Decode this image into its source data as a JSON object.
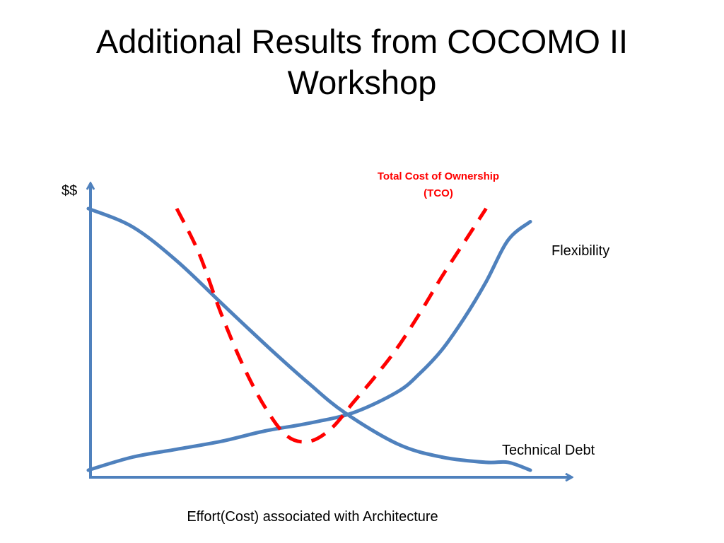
{
  "slide": {
    "title_line1": "Additional Results from COCOMO II",
    "title_line2": "Workshop"
  },
  "colors": {
    "axis": "#4f81bd",
    "curve": "#4f81bd",
    "tco": "#ff0000",
    "text": "#000000"
  },
  "chart_data": {
    "type": "line",
    "title": "",
    "xlabel": "Effort(Cost) associated with Architecture",
    "ylabel": "$$",
    "xlim": [
      0,
      1
    ],
    "ylim": [
      0,
      1
    ],
    "grid": false,
    "series": [
      {
        "name": "Technical Debt",
        "style": "solid",
        "x": [
          0.0,
          0.1,
          0.2,
          0.3,
          0.35,
          0.42,
          0.5,
          0.58,
          0.7,
          0.8,
          0.9,
          0.95,
          1.0
        ],
        "y": [
          1.0,
          0.93,
          0.8,
          0.64,
          0.56,
          0.45,
          0.33,
          0.22,
          0.1,
          0.05,
          0.03,
          0.03,
          0.0
        ]
      },
      {
        "name": "Flexibility",
        "style": "solid",
        "x": [
          0.0,
          0.1,
          0.2,
          0.3,
          0.4,
          0.5,
          0.6,
          0.7,
          0.75,
          0.8,
          0.85,
          0.9,
          0.95,
          1.0
        ],
        "y": [
          0.0,
          0.05,
          0.08,
          0.11,
          0.15,
          0.18,
          0.22,
          0.3,
          0.37,
          0.46,
          0.58,
          0.72,
          0.88,
          0.95
        ]
      },
      {
        "name": "Total Cost of Ownership (TCO)",
        "style": "dashed",
        "x": [
          0.2,
          0.25,
          0.3,
          0.35,
          0.4,
          0.45,
          0.5,
          0.55,
          0.6,
          0.65,
          0.7,
          0.75,
          0.8,
          0.85,
          0.9
        ],
        "y": [
          1.0,
          0.83,
          0.6,
          0.4,
          0.24,
          0.13,
          0.11,
          0.16,
          0.26,
          0.36,
          0.47,
          0.6,
          0.74,
          0.87,
          1.0
        ]
      }
    ],
    "annotations": {
      "tco_line1": "Total Cost of Ownership",
      "tco_line2": "(TCO)",
      "flexibility": "Flexibility",
      "technical_debt": "Technical Debt"
    }
  }
}
